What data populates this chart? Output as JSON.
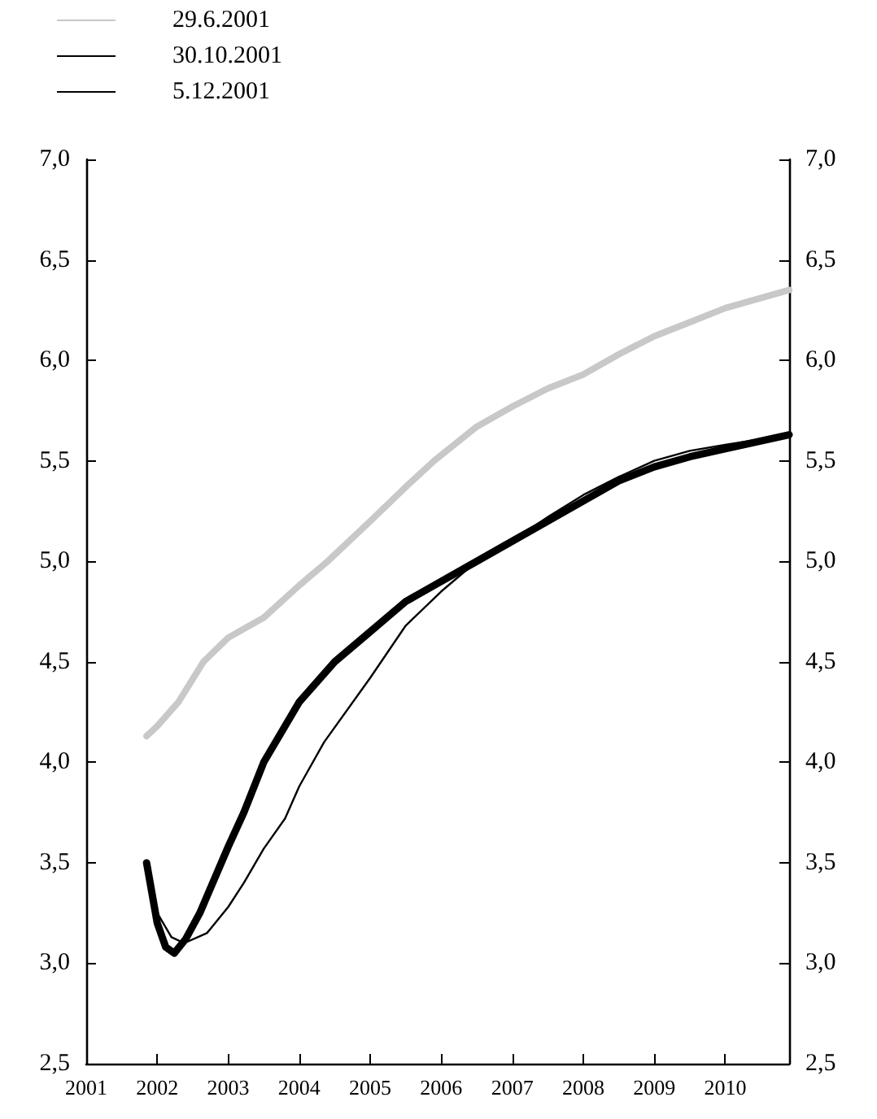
{
  "chart_data": {
    "type": "line",
    "x": [
      2001.85,
      2002,
      2002.3,
      2002.65,
      2003,
      2003.5,
      2004,
      2004.4,
      2005,
      2005.5,
      2005.9,
      2006.5,
      2007,
      2007.5,
      2008,
      2008.5,
      2009,
      2009.5,
      2010,
      2010.9
    ],
    "series": [
      {
        "name": "29.6.2001",
        "color": "#c8c8c8",
        "values": [
          4.13,
          4.18,
          4.3,
          4.5,
          4.62,
          4.72,
          4.88,
          5.0,
          5.2,
          5.37,
          5.5,
          5.67,
          5.77,
          5.86,
          5.93,
          6.03,
          6.12,
          6.19,
          6.26,
          6.35
        ]
      },
      {
        "name": "30.10.2001",
        "color": "#000000",
        "x": [
          2001.85,
          2002,
          2002.2,
          2002.38,
          2002.7,
          2003,
          2003.22,
          2003.5,
          2003.8,
          2004,
          2004.35,
          2005,
          2005.5,
          2006,
          2006.5,
          2007,
          2007.5,
          2008,
          2008.5,
          2009,
          2009.5,
          2010,
          2010.9
        ],
        "values": [
          3.5,
          3.25,
          3.13,
          3.1,
          3.15,
          3.28,
          3.4,
          3.57,
          3.72,
          3.88,
          4.1,
          4.42,
          4.68,
          4.85,
          5.0,
          5.1,
          5.22,
          5.33,
          5.42,
          5.5,
          5.55,
          5.58,
          5.63
        ]
      },
      {
        "name": "5.12.2001",
        "color": "#000000",
        "x": [
          2001.85,
          2002,
          2002.12,
          2002.24,
          2002.4,
          2002.6,
          2003,
          2003.22,
          2003.5,
          2004,
          2004.5,
          2005,
          2005.5,
          2006,
          2006.5,
          2007,
          2007.5,
          2008,
          2008.5,
          2009,
          2009.5,
          2010,
          2010.9
        ],
        "values": [
          3.5,
          3.2,
          3.08,
          3.05,
          3.12,
          3.25,
          3.58,
          3.75,
          4.0,
          4.3,
          4.5,
          4.65,
          4.8,
          4.9,
          5.0,
          5.1,
          5.2,
          5.3,
          5.4,
          5.47,
          5.52,
          5.56,
          5.63
        ]
      }
    ],
    "xlim": [
      2001,
      2010.9
    ],
    "xticks": [
      2001,
      2002,
      2003,
      2004,
      2005,
      2006,
      2007,
      2008,
      2009,
      2010
    ],
    "ylim": [
      2.5,
      7.0
    ],
    "yticks": [
      {
        "value": 2.5,
        "label": "2,5"
      },
      {
        "value": 3.0,
        "label": "3,0"
      },
      {
        "value": 3.5,
        "label": "3,5"
      },
      {
        "value": 4.0,
        "label": "4,0"
      },
      {
        "value": 4.5,
        "label": "4,5"
      },
      {
        "value": 5.0,
        "label": "5,0"
      },
      {
        "value": 5.5,
        "label": "5,5"
      },
      {
        "value": 6.0,
        "label": "6,0"
      },
      {
        "value": 6.5,
        "label": "6,5"
      },
      {
        "value": 7.0,
        "label": "7,0"
      }
    ],
    "y2lim": [
      2.5,
      7.0
    ],
    "y2ticks": [
      {
        "value": 2.5,
        "label": "2,5"
      },
      {
        "value": 3.0,
        "label": "3,0"
      },
      {
        "value": 3.5,
        "label": "3,5"
      },
      {
        "value": 4.0,
        "label": "4,0"
      },
      {
        "value": 4.5,
        "label": "4,5"
      },
      {
        "value": 5.0,
        "label": "5,0"
      },
      {
        "value": 5.5,
        "label": "5,5"
      },
      {
        "value": 6.0,
        "label": "6,0"
      },
      {
        "value": 6.5,
        "label": "6,5"
      },
      {
        "value": 7.0,
        "label": "7,0"
      }
    ],
    "grid": false,
    "legend": "top left",
    "marker": "none",
    "line_style": "solid"
  }
}
